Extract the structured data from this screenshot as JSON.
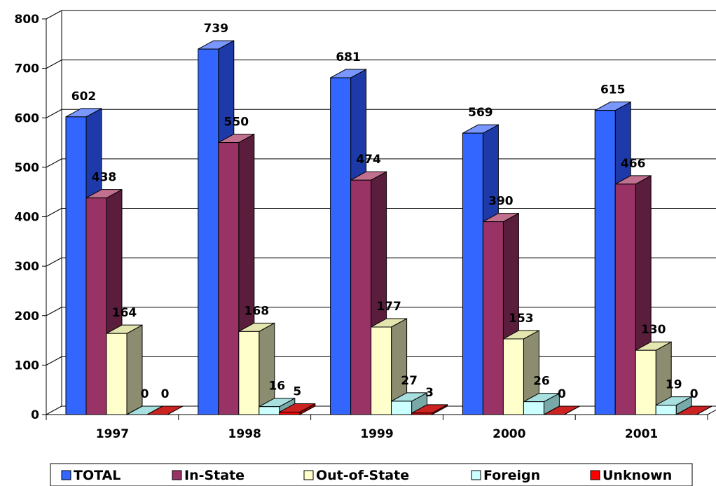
{
  "chart_data": {
    "type": "bar",
    "categories": [
      "1997",
      "1998",
      "1999",
      "2000",
      "2001"
    ],
    "series": [
      {
        "name": "TOTAL",
        "values": [
          602,
          739,
          681,
          569,
          615
        ]
      },
      {
        "name": "In-State",
        "values": [
          438,
          550,
          474,
          390,
          466
        ]
      },
      {
        "name": "Out-of-State",
        "values": [
          164,
          168,
          177,
          153,
          130
        ]
      },
      {
        "name": "Foreign",
        "values": [
          0,
          16,
          27,
          26,
          19
        ]
      },
      {
        "name": "Unknown",
        "values": [
          0,
          5,
          3,
          0,
          0
        ]
      }
    ],
    "y_ticks": [
      "0",
      "100",
      "200",
      "300",
      "400",
      "500",
      "600",
      "700",
      "800"
    ],
    "ylim": [
      0,
      800
    ],
    "grid": true,
    "three_d": true,
    "legend_position": "bottom",
    "colors": {
      "TOTAL": {
        "front": "#3366ff",
        "side": "#1d3aa8",
        "top": "#7a96ff"
      },
      "In-State": {
        "front": "#993366",
        "side": "#5a1e3c",
        "top": "#c2708f"
      },
      "Out-of-State": {
        "front": "#ffffcc",
        "side": "#8c8c70",
        "top": "#e5e5b0"
      },
      "Foreign": {
        "front": "#ccffff",
        "side": "#78a8a8",
        "top": "#a8e0e0"
      },
      "Unknown": {
        "front": "#ff0000",
        "side": "#990000",
        "top": "#cc2222"
      }
    }
  }
}
